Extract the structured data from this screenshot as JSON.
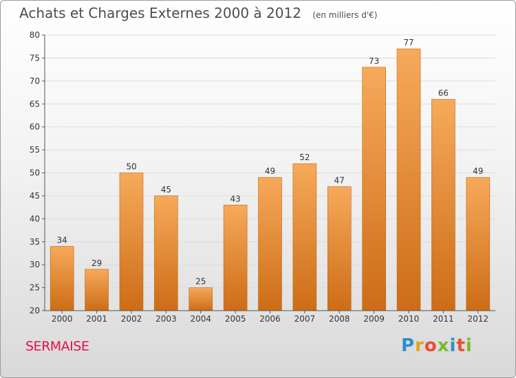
{
  "title": {
    "main": "Achats et Charges Externes 2000 à 2012",
    "unit": "(en milliers d'€)"
  },
  "commune": "SERMAISE",
  "logo": {
    "text": "Proxiti",
    "letter_colors": [
      "#2b8fcf",
      "#e3a31a",
      "#e94e2e",
      "#7cb82f",
      "#2b8fcf",
      "#e94e2e",
      "#7cb82f"
    ]
  },
  "colors": {
    "bar_light": "#f6aa5a",
    "bar_dark": "#cd6c17",
    "commune": "#e0114d"
  },
  "chart_data": {
    "type": "bar",
    "title": "Achats et Charges Externes 2000 à 2012",
    "subtitle": "(en milliers d'€)",
    "categories": [
      "2000",
      "2001",
      "2002",
      "2003",
      "2004",
      "2005",
      "2006",
      "2007",
      "2008",
      "2009",
      "2010",
      "2011",
      "2012"
    ],
    "values": [
      34,
      29,
      50,
      45,
      25,
      43,
      49,
      52,
      47,
      73,
      77,
      66,
      49
    ],
    "ylim": [
      20,
      80
    ],
    "yticks": [
      20,
      25,
      30,
      35,
      40,
      45,
      50,
      55,
      60,
      65,
      70,
      75,
      80
    ],
    "grid": true,
    "data_labels": true
  }
}
